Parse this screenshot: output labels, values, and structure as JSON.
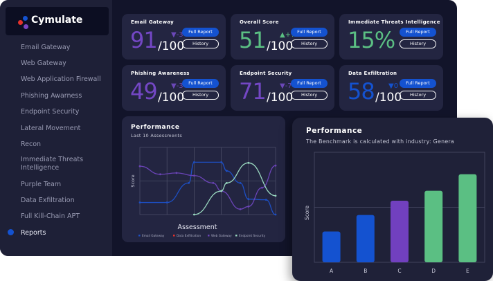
{
  "brand": {
    "name": "Cymulate",
    "dot_colors": [
      "#1452d0",
      "#e5312b",
      "#7a45c2"
    ]
  },
  "sidebar": {
    "items": [
      {
        "label": "Email Gateway"
      },
      {
        "label": "Web Gateway"
      },
      {
        "label": "Web Application Firewall"
      },
      {
        "label": "Phishing Awarness"
      },
      {
        "label": "Endpoint Security"
      },
      {
        "label": "Lateral Movement"
      },
      {
        "label": "Recon"
      },
      {
        "label": "Immediate Threats Intelligence"
      },
      {
        "label": "Purple Team"
      },
      {
        "label": "Data Exfiltration"
      },
      {
        "label": "Full Kill-Chain APT"
      },
      {
        "label": "Reports",
        "active": true
      }
    ]
  },
  "cards": [
    {
      "title": "Email  Gateway",
      "score": "91",
      "denominator": "/100",
      "delta": "▼-3",
      "color": "#7347c4",
      "delta_color": "#6b48b8",
      "full_report": "Full Report",
      "history": "History"
    },
    {
      "title": "Overall Score",
      "score": "51",
      "denominator": "/100",
      "delta": "▲+7",
      "color": "#5bbf83",
      "delta_color": "#5bbf83",
      "full_report": "Full Report",
      "history": "History"
    },
    {
      "title": "Immediate Threats Intelligence",
      "score": "15%",
      "denominator": "",
      "delta": "",
      "color": "#5bbf83",
      "delta_color": "#5bbf83",
      "full_report": "Full Report",
      "history": "History"
    },
    {
      "title": "Phishing Awareness",
      "score": "49",
      "denominator": "/100",
      "delta": "▼-3",
      "color": "#7347c4",
      "delta_color": "#6b48b8",
      "full_report": "Full Report",
      "history": "History"
    },
    {
      "title": "Endpoint Security",
      "score": "71",
      "denominator": "/100",
      "delta": "▼-7",
      "color": "#7347c4",
      "delta_color": "#6b48b8",
      "full_report": "Full Report",
      "history": "History"
    },
    {
      "title": "Data Exfiltration",
      "score": "58",
      "denominator": "/100",
      "delta": "▼0",
      "color": "#1452d0",
      "delta_color": "#1452d0",
      "full_report": "Full Report",
      "history": "History"
    }
  ],
  "chart_data": [
    {
      "type": "line",
      "title": "Performance",
      "subtitle": "Last 10 Assessments",
      "xlabel": "Assessment",
      "ylabel": "Score",
      "ylim": [
        0,
        100
      ],
      "grid": true,
      "legend": "bottom",
      "series": [
        {
          "name": "Email Gateway",
          "color": "#1d4fc4",
          "x": [
            0,
            0.2,
            0.36,
            0.4,
            0.6,
            0.64,
            0.74,
            0.8,
            0.93,
            1
          ],
          "values": [
            18,
            18,
            47,
            78,
            78,
            65,
            47,
            23,
            22,
            0
          ]
        },
        {
          "name": "Data Exfiltration",
          "color": "#e5312b",
          "x": [],
          "values": []
        },
        {
          "name": "Web Gateway",
          "color": "#6b44b8",
          "x": [
            0,
            0.15,
            0.27,
            0.4,
            0.54,
            0.6,
            0.74,
            0.8,
            0.9,
            1
          ],
          "values": [
            72,
            60,
            62,
            58,
            47,
            35,
            8,
            12,
            40,
            73
          ]
        },
        {
          "name": "Endpoint Security",
          "color": "#9ad9c0",
          "x": [
            0.4,
            0.6,
            0.64,
            0.8,
            1
          ],
          "values": [
            0,
            35,
            47,
            77,
            28
          ]
        }
      ]
    },
    {
      "type": "bar",
      "title": "Performance",
      "subtitle": "The Benchmark is calculated with industry: Genera",
      "xlabel": "",
      "ylabel": "Score",
      "ylim": [
        0,
        100
      ],
      "grid": true,
      "categories": [
        "A",
        "B",
        "C",
        "D",
        "E"
      ],
      "values": [
        28,
        43,
        56,
        65,
        80
      ],
      "colors": [
        "#1452d0",
        "#1452d0",
        "#7140bf",
        "#5bbf83",
        "#5bbf83"
      ]
    }
  ]
}
